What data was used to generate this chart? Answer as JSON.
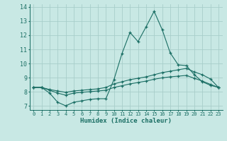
{
  "xlabel": "Humidex (Indice chaleur)",
  "xlim": [
    -0.5,
    23.5
  ],
  "ylim": [
    6.7,
    14.2
  ],
  "yticks": [
    7,
    8,
    9,
    10,
    11,
    12,
    13,
    14
  ],
  "xticks": [
    0,
    1,
    2,
    3,
    4,
    5,
    6,
    7,
    8,
    9,
    10,
    11,
    12,
    13,
    14,
    15,
    16,
    17,
    18,
    19,
    20,
    21,
    22,
    23
  ],
  "bg_color": "#c8e8e4",
  "grid_color": "#a8ceca",
  "line_color": "#1a6e64",
  "line1_x": [
    0,
    1,
    2,
    3,
    4,
    5,
    6,
    7,
    8,
    9,
    10,
    11,
    12,
    13,
    14,
    15,
    16,
    17,
    18,
    19,
    20,
    21,
    22,
    23
  ],
  "line1_y": [
    8.3,
    8.3,
    7.9,
    7.25,
    7.0,
    7.25,
    7.35,
    7.45,
    7.5,
    7.5,
    8.85,
    10.7,
    12.2,
    11.55,
    12.6,
    13.7,
    12.4,
    10.75,
    9.9,
    9.85,
    9.2,
    8.7,
    8.45,
    8.3
  ],
  "line2_x": [
    0,
    1,
    2,
    3,
    4,
    5,
    6,
    7,
    8,
    9,
    10,
    11,
    12,
    13,
    14,
    15,
    16,
    17,
    18,
    19,
    20,
    21,
    22,
    23
  ],
  "line2_y": [
    8.3,
    8.3,
    8.15,
    8.05,
    7.95,
    8.05,
    8.1,
    8.15,
    8.2,
    8.3,
    8.55,
    8.7,
    8.85,
    8.95,
    9.05,
    9.2,
    9.35,
    9.45,
    9.55,
    9.65,
    9.4,
    9.2,
    8.9,
    8.3
  ],
  "line3_x": [
    0,
    1,
    2,
    3,
    4,
    5,
    6,
    7,
    8,
    9,
    10,
    11,
    12,
    13,
    14,
    15,
    16,
    17,
    18,
    19,
    20,
    21,
    22,
    23
  ],
  "line3_y": [
    8.3,
    8.3,
    8.1,
    7.9,
    7.75,
    7.9,
    7.95,
    8.0,
    8.05,
    8.1,
    8.3,
    8.42,
    8.55,
    8.65,
    8.75,
    8.88,
    8.98,
    9.05,
    9.1,
    9.15,
    8.95,
    8.75,
    8.52,
    8.3
  ]
}
